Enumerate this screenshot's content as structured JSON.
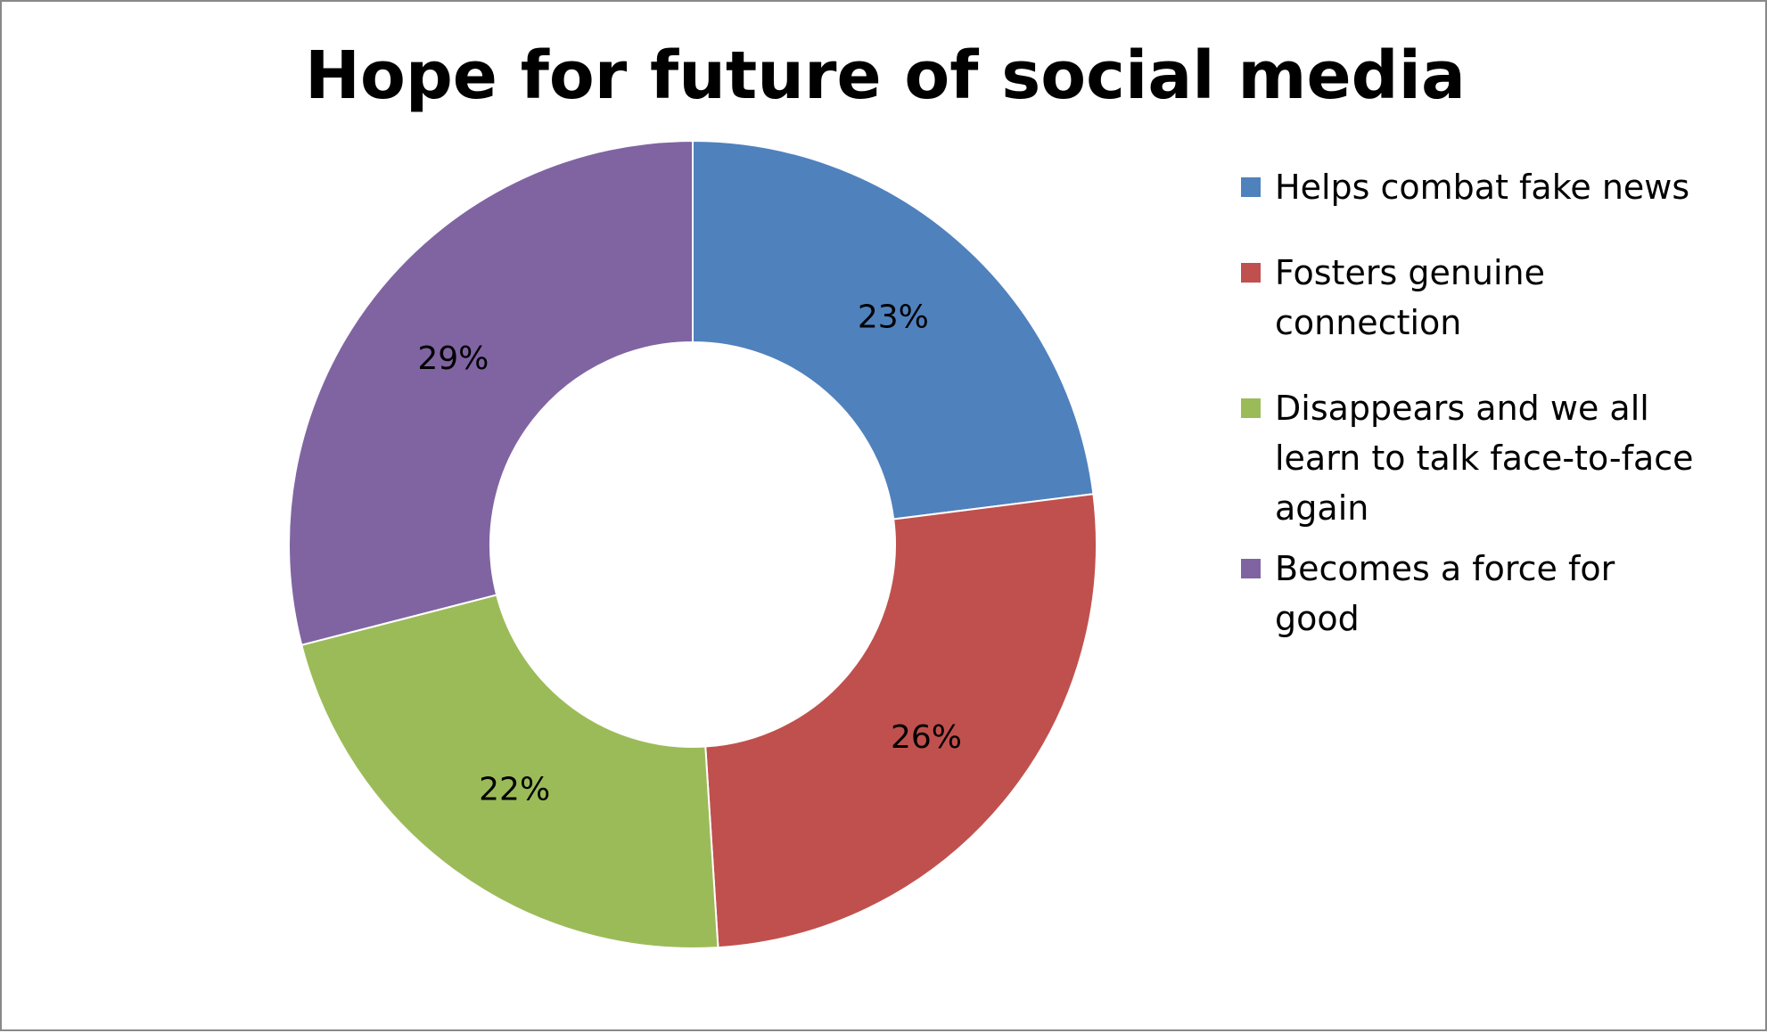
{
  "chart_data": {
    "type": "pie",
    "variant": "donut",
    "title": "Hope for future of social media",
    "categories": [
      "Helps combat fake news",
      "Fosters genuine connection",
      "Disappears and we all learn to talk face-to-face again",
      "Becomes a force for good"
    ],
    "values": [
      23,
      26,
      22,
      29
    ],
    "value_labels": [
      "23%",
      "26%",
      "22%",
      "29%"
    ],
    "colors": [
      "#4F81BD",
      "#C0504D",
      "#9BBB59",
      "#8064A2"
    ],
    "legend_position": "right",
    "grid": false
  }
}
